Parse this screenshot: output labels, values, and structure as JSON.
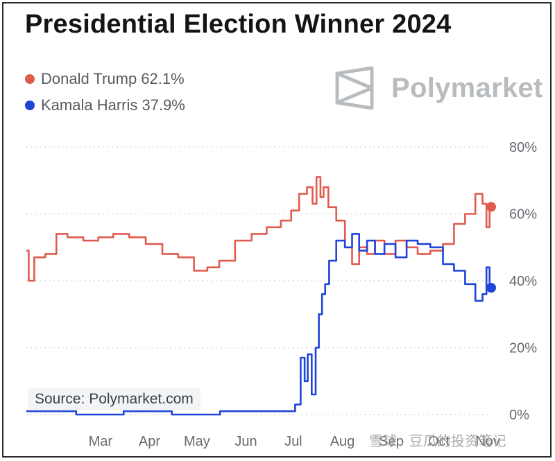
{
  "title": "Presidential Election Winner 2024",
  "brand": "Polymarket",
  "source": "Source: Polymarket.com",
  "watermark": "雪球 · 豆瓜的投资笔记",
  "colors": {
    "trump": "#e05a4e",
    "harris": "#1f44d6",
    "grid": "#cfcfcf",
    "axis_text": "#666b70"
  },
  "chart_data": {
    "type": "line",
    "title": "Presidential Election Winner 2024",
    "xlabel": "",
    "ylabel": "",
    "ylim": [
      0,
      80
    ],
    "yticks": [
      "0%",
      "20%",
      "40%",
      "60%",
      "80%"
    ],
    "xtick_labels": [
      "Mar",
      "Apr",
      "May",
      "Jun",
      "Jul",
      "Aug",
      "Sep",
      "Oct",
      "Nov"
    ],
    "grid": true,
    "legend_placement": "top-left",
    "series": [
      {
        "name": "Donald Trump",
        "last_value_label": "62.1%",
        "color": "#e05a4e",
        "x": [
          "2024-01-15",
          "2024-01-18",
          "2024-01-22",
          "2024-02-01",
          "2024-02-05",
          "2024-02-15",
          "2024-02-25",
          "2024-03-05",
          "2024-03-15",
          "2024-03-25",
          "2024-04-05",
          "2024-04-15",
          "2024-04-25",
          "2024-05-05",
          "2024-05-12",
          "2024-05-20",
          "2024-06-01",
          "2024-06-10",
          "2024-06-20",
          "2024-06-28",
          "2024-07-03",
          "2024-07-08",
          "2024-07-13",
          "2024-07-15",
          "2024-07-18",
          "2024-07-20",
          "2024-07-22",
          "2024-07-26",
          "2024-08-01",
          "2024-08-06",
          "2024-08-10",
          "2024-08-15",
          "2024-08-20",
          "2024-08-25",
          "2024-09-01",
          "2024-09-08",
          "2024-09-15",
          "2024-09-22",
          "2024-10-01",
          "2024-10-08",
          "2024-10-15",
          "2024-10-22",
          "2024-10-28",
          "2024-10-31",
          "2024-11-02",
          "2024-11-04"
        ],
        "values": [
          49,
          40,
          47,
          48,
          54,
          53,
          52,
          53,
          54,
          53,
          51,
          48,
          47,
          43,
          44,
          46,
          52,
          54,
          56,
          58,
          61,
          66,
          68,
          63,
          71,
          65,
          68,
          62,
          58,
          50,
          45,
          50,
          48,
          52,
          48,
          52,
          50,
          48,
          49,
          51,
          57,
          60,
          66,
          63,
          56,
          62.1
        ]
      },
      {
        "name": "Kamala Harris",
        "last_value_label": "37.9%",
        "color": "#1f44d6",
        "x": [
          "2024-01-15",
          "2024-02-01",
          "2024-03-01",
          "2024-04-01",
          "2024-05-01",
          "2024-06-01",
          "2024-06-20",
          "2024-07-01",
          "2024-07-05",
          "2024-07-08",
          "2024-07-10",
          "2024-07-12",
          "2024-07-15",
          "2024-07-17",
          "2024-07-19",
          "2024-07-21",
          "2024-07-23",
          "2024-07-26",
          "2024-08-01",
          "2024-08-06",
          "2024-08-10",
          "2024-08-15",
          "2024-08-20",
          "2024-08-25",
          "2024-09-01",
          "2024-09-08",
          "2024-09-15",
          "2024-09-22",
          "2024-10-01",
          "2024-10-08",
          "2024-10-15",
          "2024-10-22",
          "2024-10-28",
          "2024-10-31",
          "2024-11-02",
          "2024-11-04"
        ],
        "values": [
          1,
          1,
          0,
          1,
          0,
          1,
          1,
          1,
          3,
          17,
          10,
          18,
          6,
          20,
          30,
          36,
          39,
          46,
          52,
          50,
          54,
          49,
          52,
          48,
          51,
          47,
          52,
          51,
          50,
          45,
          43,
          39,
          34,
          36,
          44,
          37.9
        ]
      }
    ]
  },
  "legend": {
    "trump_label": "Donald Trump 62.1%",
    "harris_label": "Kamala Harris 37.9%"
  }
}
